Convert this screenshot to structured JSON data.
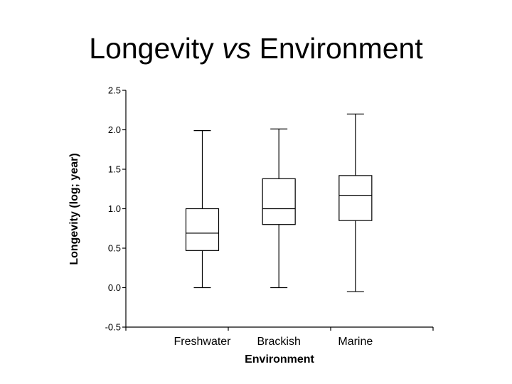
{
  "title": {
    "prefix": "Longevity ",
    "emphasis": "vs",
    "suffix": " Environment"
  },
  "chart_data": {
    "type": "boxplot",
    "title": "Longevity vs Environment",
    "xlabel": "Environment",
    "ylabel": "Longevity (log; year)",
    "ylim": [
      -0.5,
      2.5
    ],
    "yticks": [
      -0.5,
      0.0,
      0.5,
      1.0,
      1.5,
      2.0,
      2.5
    ],
    "ytick_labels": [
      "-0.5",
      "0.0",
      "0.5",
      "1.0",
      "1.5",
      "2.0",
      "2.5"
    ],
    "grid": false,
    "categories": [
      "Freshwater",
      "Brackish",
      "Marine"
    ],
    "boxes": [
      {
        "category": "Freshwater",
        "min": 0.0,
        "q1": 0.47,
        "median": 0.69,
        "q3": 1.0,
        "max": 1.99
      },
      {
        "category": "Brackish",
        "min": 0.0,
        "q1": 0.8,
        "median": 1.0,
        "q3": 1.38,
        "max": 2.01
      },
      {
        "category": "Marine",
        "min": -0.05,
        "q1": 0.85,
        "median": 1.17,
        "q3": 1.42,
        "max": 2.2
      }
    ]
  }
}
